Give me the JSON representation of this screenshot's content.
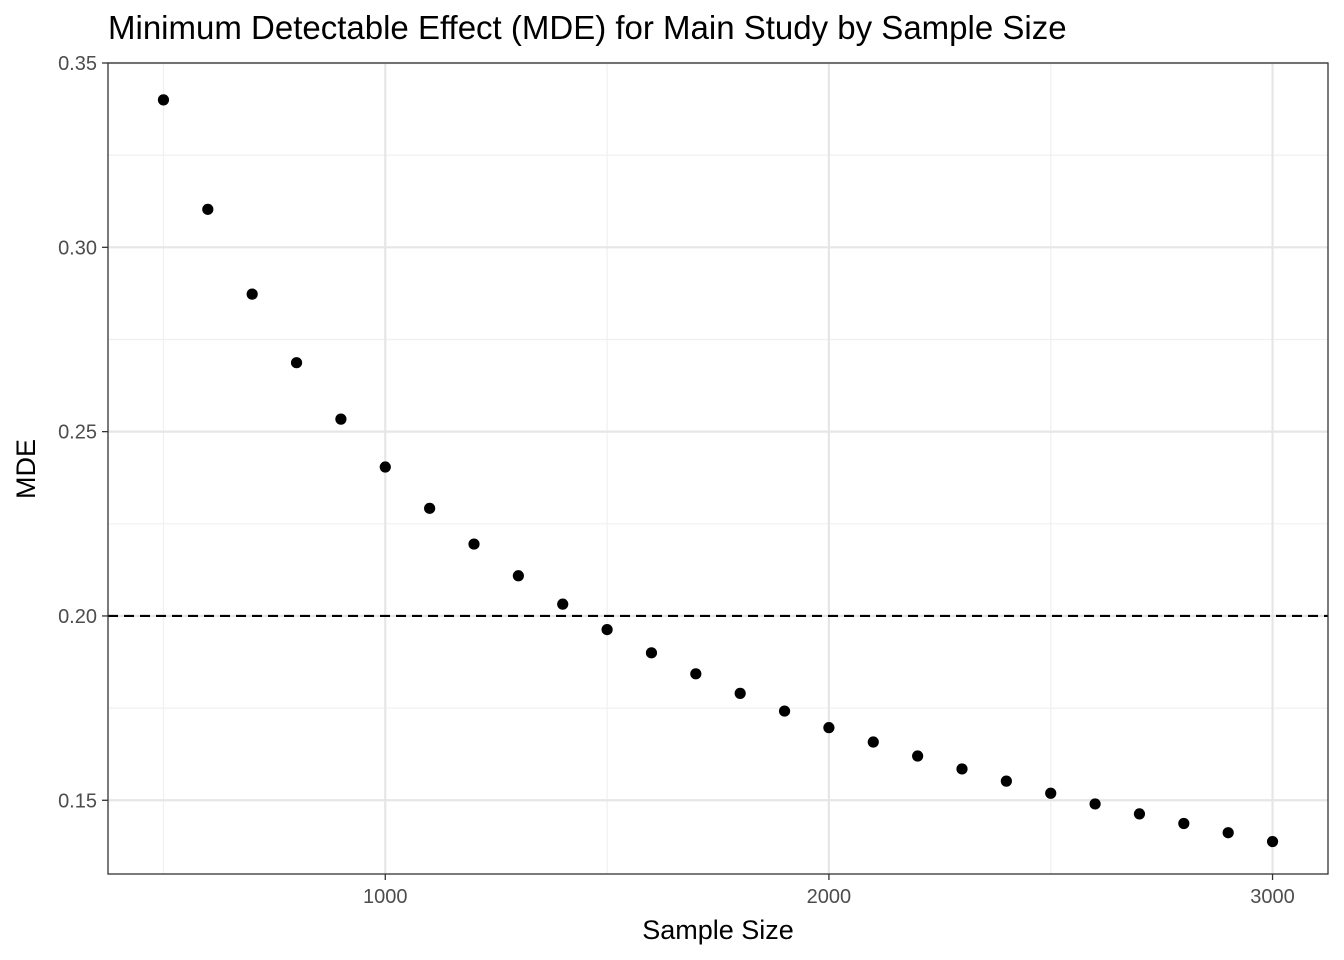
{
  "chart_data": {
    "type": "scatter",
    "title": "Minimum Detectable Effect (MDE) for Main Study by Sample Size",
    "xlabel": "Sample Size",
    "ylabel": "MDE",
    "xlim": [
      375,
      3125
    ],
    "ylim": [
      0.13,
      0.35
    ],
    "x_ticks": [
      1000,
      2000,
      3000
    ],
    "x_tick_labels": [
      "1000",
      "2000",
      "3000"
    ],
    "x_minor_ticks": [
      500,
      1500,
      2500
    ],
    "y_ticks": [
      0.15,
      0.2,
      0.25,
      0.3,
      0.35
    ],
    "y_tick_labels": [
      "0.15",
      "0.20",
      "0.25",
      "0.30",
      "0.35"
    ],
    "y_minor_ticks": [
      0.175,
      0.225,
      0.275,
      0.325
    ],
    "grid": true,
    "reference_line": {
      "y": 0.2,
      "style": "dashed"
    },
    "point_color": "#000000",
    "x": [
      500,
      600,
      700,
      800,
      900,
      1000,
      1100,
      1200,
      1300,
      1400,
      1500,
      1600,
      1700,
      1800,
      1900,
      2000,
      2100,
      2200,
      2300,
      2400,
      2500,
      2600,
      2700,
      2800,
      2900,
      3000
    ],
    "y": [
      0.34,
      0.3103,
      0.2873,
      0.2687,
      0.2534,
      0.2404,
      0.2292,
      0.2195,
      0.2109,
      0.2032,
      0.1963,
      0.19,
      0.1843,
      0.179,
      0.1742,
      0.1697,
      0.1658,
      0.162,
      0.1585,
      0.1552,
      0.1519,
      0.149,
      0.1463,
      0.1437,
      0.1412,
      0.1388
    ]
  }
}
